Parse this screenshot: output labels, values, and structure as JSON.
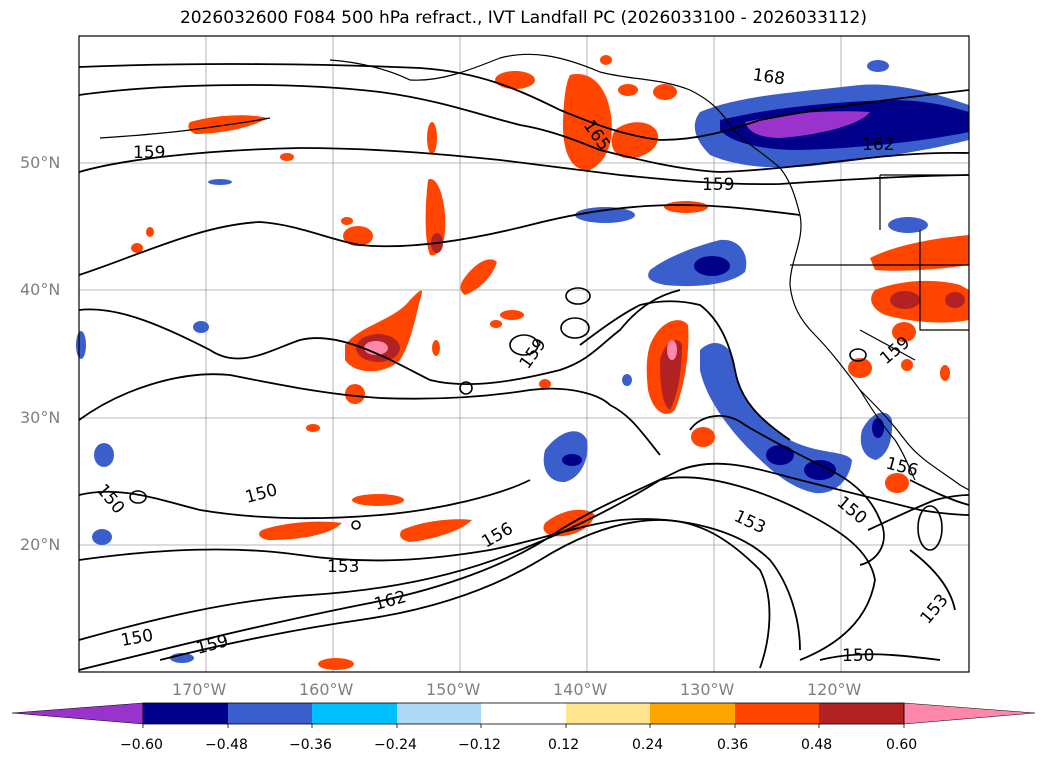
{
  "title": "2026032600 F084 500 hPa refract., IVT Landfall PC (2026033100 - 2026033112)",
  "lat_ticks": [
    "50°N",
    "40°N",
    "30°N",
    "20°N"
  ],
  "lon_ticks": [
    "170°W",
    "160°W",
    "150°W",
    "140°W",
    "130°W",
    "120°W"
  ],
  "contour_labels": [
    "168",
    "165",
    "162",
    "159",
    "159",
    "159",
    "159",
    "156",
    "156",
    "153",
    "153",
    "153",
    "150",
    "150",
    "150",
    "150",
    "150",
    "162",
    "159"
  ],
  "colorbar": {
    "tick_labels": [
      "−0.60",
      "−0.48",
      "−0.36",
      "−0.24",
      "−0.12",
      "0.12",
      "0.24",
      "0.36",
      "0.48",
      "0.60"
    ],
    "colors": [
      "#9933cc",
      "#00008b",
      "#3a5fcd",
      "#00bfff",
      "#add8f6",
      "#ffffff",
      "#ffe68f",
      "#ffa500",
      "#ff4500",
      "#b22222",
      "#ff88aa"
    ]
  }
}
